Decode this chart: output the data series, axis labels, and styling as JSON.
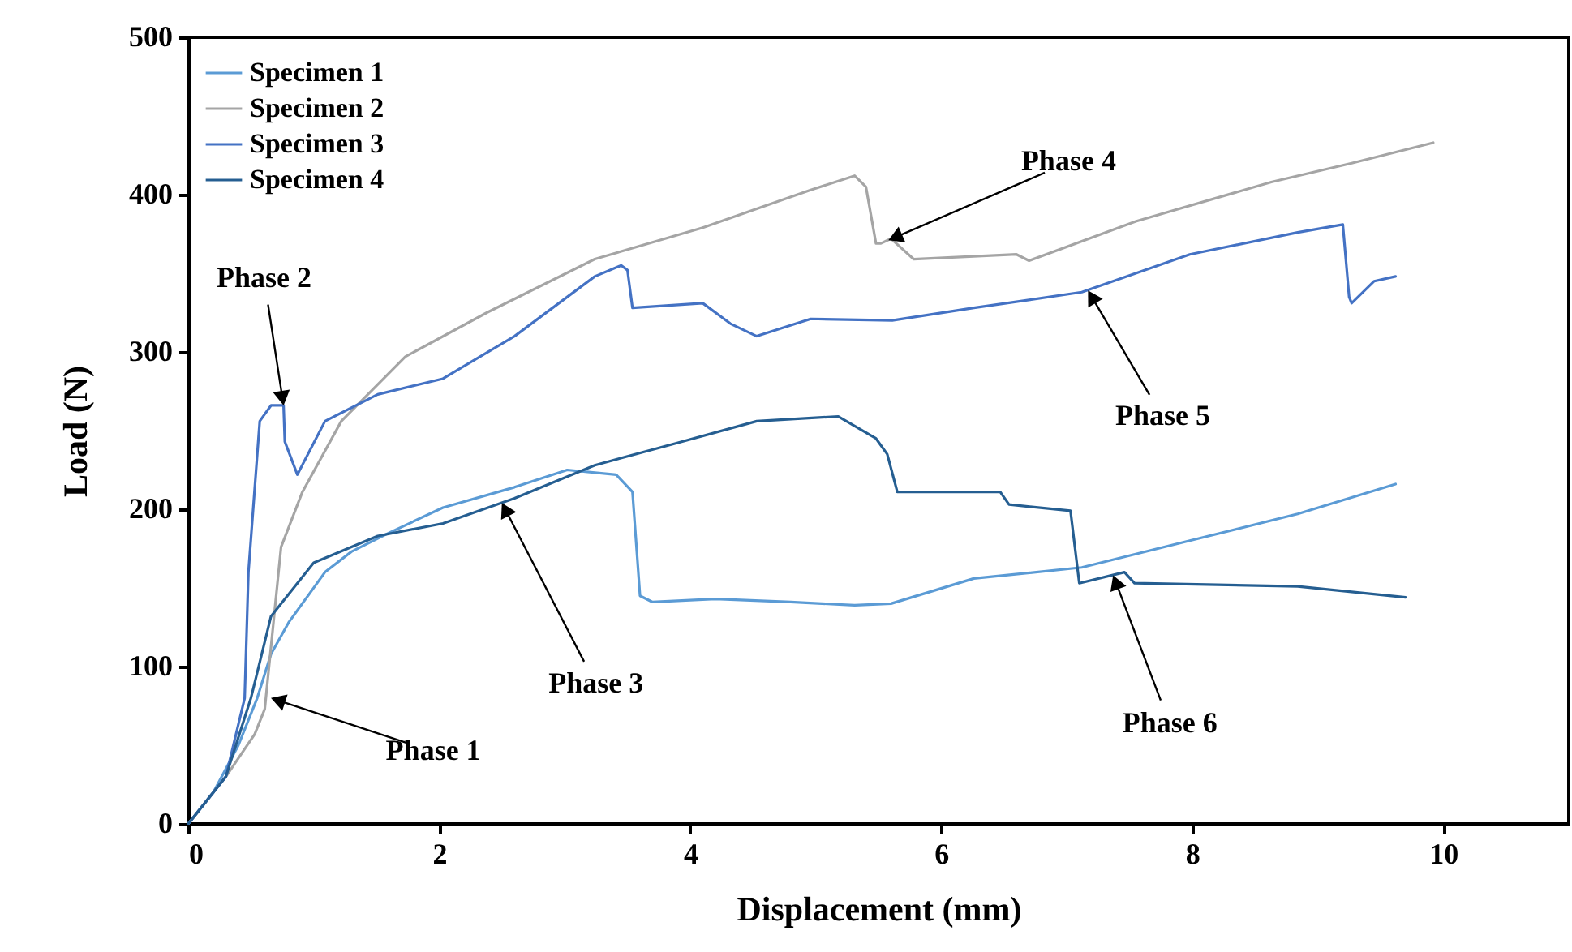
{
  "chart_data": {
    "type": "line",
    "xlabel": "Displacement (mm)",
    "ylabel": "Load (N)",
    "xlim": [
      0,
      11
    ],
    "xticks": [
      0,
      2,
      4,
      6,
      8,
      10
    ],
    "ylim": [
      0,
      500
    ],
    "yticks": [
      0,
      100,
      200,
      300,
      400,
      500
    ],
    "legend": "top left",
    "marker": "none",
    "line_style": "solid",
    "series": [
      {
        "name": "Specimen 1",
        "color": "#5b9bd5",
        "x": [
          0,
          0.2,
          0.4,
          0.55,
          0.66,
          0.8,
          1.09,
          1.3,
          1.6,
          2.03,
          2.6,
          3.02,
          3.41,
          3.54,
          3.6,
          3.7,
          4.2,
          4.8,
          5.31,
          5.6,
          6.26,
          7.12,
          7.98,
          8.84,
          9.62
        ],
        "values": [
          0,
          20,
          50,
          80,
          108,
          128,
          160,
          173,
          185,
          201,
          214,
          225,
          222,
          211,
          145,
          141,
          143,
          141,
          139,
          140,
          156,
          163,
          180,
          197,
          216
        ]
      },
      {
        "name": "Specimen 2",
        "color": "#a5a5a5",
        "x": [
          0,
          0.3,
          0.53,
          0.61,
          0.74,
          0.91,
          1.22,
          1.73,
          2.38,
          3.24,
          4.1,
          4.96,
          5.31,
          5.4,
          5.48,
          5.52,
          5.6,
          5.78,
          6.6,
          6.7,
          7.55,
          8.63,
          9.27,
          9.92
        ],
        "values": [
          0,
          30,
          57,
          73,
          176,
          211,
          256,
          297,
          325,
          359,
          379,
          403,
          412,
          405,
          369,
          369,
          372,
          359,
          362,
          358,
          383,
          408,
          420,
          433
        ]
      },
      {
        "name": "Specimen 3",
        "color": "#4472c4",
        "x": [
          0,
          0.3,
          0.45,
          0.48,
          0.57,
          0.66,
          0.76,
          0.77,
          0.87,
          1.09,
          1.51,
          2.03,
          2.6,
          3.24,
          3.45,
          3.5,
          3.54,
          4.1,
          4.32,
          4.53,
          4.96,
          5.61,
          6.26,
          7.12,
          7.98,
          8.84,
          9.2,
          9.25,
          9.27,
          9.45,
          9.62
        ],
        "values": [
          0,
          30,
          80,
          160,
          256,
          266,
          266,
          243,
          222,
          256,
          273,
          283,
          310,
          348,
          355,
          352,
          328,
          331,
          318,
          310,
          321,
          320,
          328,
          338,
          362,
          376,
          381,
          335,
          331,
          345,
          348
        ]
      },
      {
        "name": "Specimen 4",
        "color": "#255e91",
        "x": [
          0,
          0.3,
          0.5,
          0.66,
          1.0,
          1.51,
          2.03,
          2.6,
          3.24,
          3.89,
          4.53,
          5.18,
          5.48,
          5.57,
          5.65,
          6.47,
          6.54,
          7.03,
          7.1,
          7.46,
          7.54,
          8.84,
          9.7
        ],
        "values": [
          0,
          30,
          80,
          132,
          166,
          183,
          191,
          207,
          228,
          242,
          256,
          259,
          245,
          235,
          211,
          211,
          203,
          199,
          153,
          160,
          153,
          151,
          144
        ]
      }
    ],
    "annotations": [
      {
        "text": "Phase 1",
        "x": 0.66,
        "y": 80
      },
      {
        "text": "Phase 2",
        "x": 0.76,
        "y": 266
      },
      {
        "text": "Phase 3",
        "x": 2.5,
        "y": 204
      },
      {
        "text": "Phase 4",
        "x": 5.58,
        "y": 371
      },
      {
        "text": "Phase 5",
        "x": 7.17,
        "y": 339
      },
      {
        "text": "Phase 6",
        "x": 7.37,
        "y": 158
      }
    ]
  }
}
